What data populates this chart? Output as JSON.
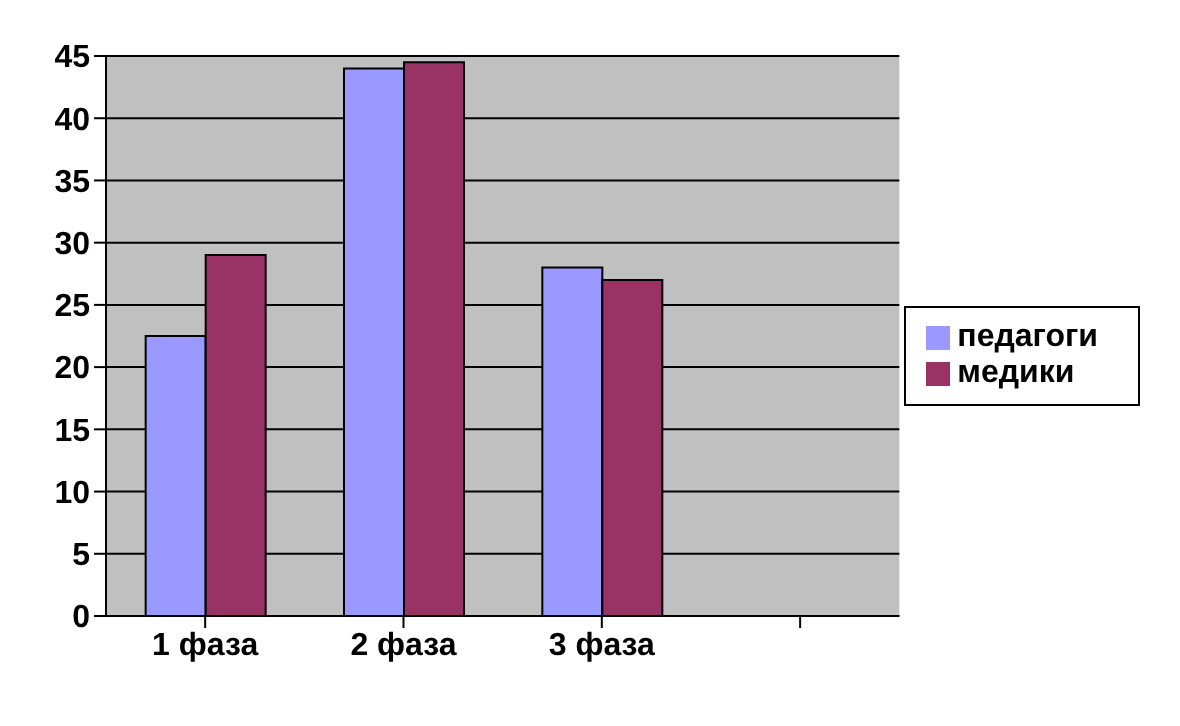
{
  "chart_data": {
    "type": "bar",
    "categories": [
      "1 фаза",
      "2 фаза",
      "3 фаза",
      null
    ],
    "series": [
      {
        "name": "педагоги",
        "color": "#9999ff",
        "values": [
          22.5,
          44,
          28,
          null
        ]
      },
      {
        "name": "медики",
        "color": "#993366",
        "values": [
          29,
          44.5,
          27,
          null
        ]
      }
    ],
    "ylim": [
      0,
      45
    ],
    "yticks": [
      0,
      5,
      10,
      15,
      20,
      25,
      30,
      35,
      40,
      45
    ],
    "grid": "y",
    "legend": "right"
  }
}
